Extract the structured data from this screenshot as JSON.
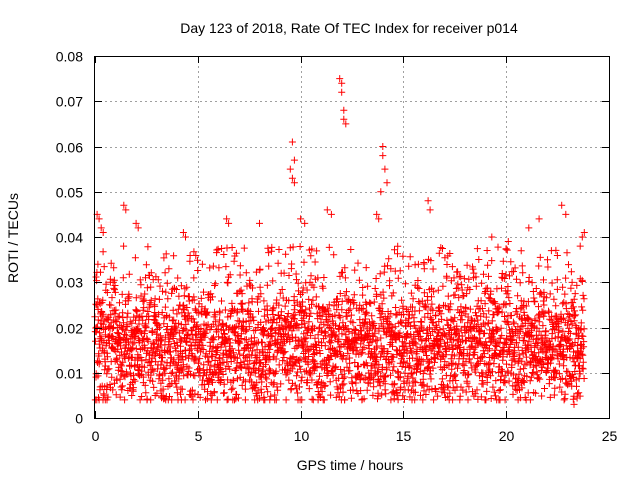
{
  "chart_data": {
    "type": "scatter",
    "title": "Day 123 of 2018, Rate Of TEC Index for receiver p014",
    "xlabel": "GPS time / hours",
    "ylabel": "ROTI / TECUs",
    "xlim": [
      0,
      25
    ],
    "ylim": [
      0,
      0.08
    ],
    "xticks": [
      "0",
      "5",
      "10",
      "15",
      "20",
      "25"
    ],
    "xtick_values": [
      0,
      5,
      10,
      15,
      20,
      25
    ],
    "yticks": [
      "0",
      "0.01",
      "0.02",
      "0.03",
      "0.04",
      "0.05",
      "0.06",
      "0.07",
      "0.08"
    ],
    "ytick_values": [
      0,
      0.01,
      0.02,
      0.03,
      0.04,
      0.05,
      0.06,
      0.07,
      0.08
    ],
    "grid": true,
    "marker": "+",
    "color": "#ff0000",
    "series": [
      {
        "name": "ROTI",
        "dense_band": {
          "x_range": [
            0,
            23.8
          ],
          "y_range": [
            0.004,
            0.038
          ],
          "typical": 0.016
        },
        "x": [
          0.1,
          0.2,
          0.3,
          0.4,
          1.4,
          1.5,
          2.0,
          2.1,
          4.3,
          4.4,
          6.4,
          6.5,
          8.0,
          9.5,
          9.6,
          9.6,
          9.7,
          9.7,
          10.0,
          10.2,
          11.3,
          11.5,
          11.9,
          12.0,
          12.0,
          12.1,
          12.1,
          12.2,
          13.7,
          13.8,
          13.9,
          14.0,
          14.0,
          14.1,
          14.2,
          16.2,
          16.3,
          19.3,
          20.1,
          21.1,
          21.6,
          22.7,
          22.9,
          23.8,
          23.7,
          23.6,
          14.7,
          4.2,
          16.0,
          0.2,
          8.5,
          5.7,
          11.1,
          19.7,
          23.3
        ],
        "y": [
          0.045,
          0.044,
          0.042,
          0.041,
          0.047,
          0.046,
          0.043,
          0.042,
          0.041,
          0.04,
          0.044,
          0.043,
          0.043,
          0.055,
          0.053,
          0.061,
          0.057,
          0.052,
          0.044,
          0.043,
          0.046,
          0.045,
          0.075,
          0.074,
          0.072,
          0.068,
          0.066,
          0.065,
          0.045,
          0.044,
          0.05,
          0.06,
          0.058,
          0.055,
          0.052,
          0.048,
          0.046,
          0.04,
          0.039,
          0.042,
          0.044,
          0.047,
          0.045,
          0.041,
          0.04,
          0.038,
          0.005,
          0.004,
          0.006,
          0.004,
          0.004,
          0.005,
          0.004,
          0.004,
          0.003
        ]
      }
    ]
  }
}
